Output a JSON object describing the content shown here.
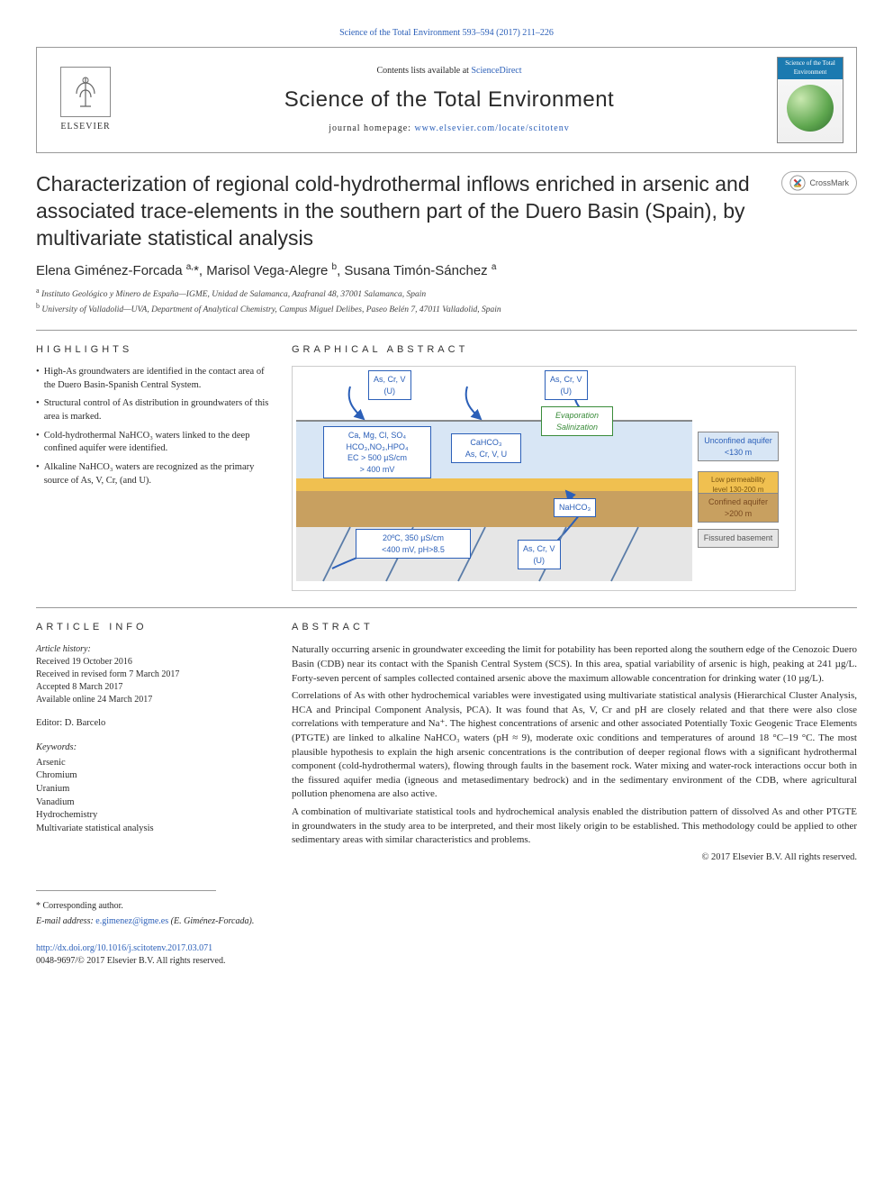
{
  "top_citation": "Science of the Total Environment 593–594 (2017) 211–226",
  "header": {
    "contents_prefix": "Contents lists available at ",
    "contents_link": "ScienceDirect",
    "journal_name": "Science of the Total Environment",
    "homepage_prefix": "journal homepage: ",
    "homepage_link": "www.elsevier.com/locate/scitotenv",
    "publisher_name": "ELSEVIER",
    "cover_label": "Science of the Total Environment"
  },
  "article": {
    "title": "Characterization of regional cold-hydrothermal inflows enriched in arsenic and associated trace-elements in the southern part of the Duero Basin (Spain), by multivariate statistical analysis",
    "crossmark_label": "CrossMark",
    "authors_html": "Elena Giménez-Forcada <sup>a,</sup>*, Marisol Vega-Alegre <sup>b</sup>, Susana Timón-Sánchez <sup>a</sup>",
    "affiliations": [
      "a Instituto Geológico y Minero de España—IGME, Unidad de Salamanca, Azafranal 48, 37001 Salamanca, Spain",
      "b University of Valladolid—UVA, Department of Analytical Chemistry, Campus Miguel Delibes, Paseo Belén 7, 47011 Valladolid, Spain"
    ]
  },
  "highlights": {
    "heading": "HIGHLIGHTS",
    "items": [
      "High-As groundwaters are identified in the contact area of the Duero Basin-Spanish Central System.",
      "Structural control of As distribution in groundwaters of this area is marked.",
      "Cold-hydrothermal NaHCO₃ waters linked to the deep confined aquifer were identified.",
      "Alkaline NaHCO₃ waters are recognized as the primary source of As, V, Cr, (and U)."
    ]
  },
  "graphical_abstract": {
    "heading": "GRAPHICAL ABSTRACT",
    "colors": {
      "blue_box_border": "#2b5fb8",
      "green_box_border": "#3a8c3a",
      "aquifer_top": "#d8e6f5",
      "aquifer_bottom": "#b8d0ea",
      "low_perm": "#f0c050",
      "confined": "#c8a060",
      "basement": "#d9d9d9",
      "evap_text": "#3a8c3a"
    },
    "boxes": {
      "top_left": "As, Cr, V\n(U)",
      "top_right": "As, Cr, V\n(U)",
      "left_main": "Ca, Mg, Cl, SO₄\nHCO₃,NO₃,HPO₄\nEC > 500 µS/cm\n> 400 mV",
      "center_small": "CaHCO₃\nAs, Cr, V, U",
      "evap_box": "Evaporation\nSalinization",
      "right_u1": "Unconfined aquifer\n<130 m",
      "right_u2": "Low permeability level 130-200 m",
      "right_u3": "Confined aquifer\n>200 m",
      "right_u4": "Fissured basement",
      "deep_arrow": "20ºC, 350 µS/cm\n<400 mV, pH>8.5",
      "nahco3": "NaHCO₃",
      "deep_as": "As, Cr, V\n(U)"
    }
  },
  "article_info": {
    "heading": "ARTICLE INFO",
    "history_label": "Article history:",
    "history": [
      "Received 19 October 2016",
      "Received in revised form 7 March 2017",
      "Accepted 8 March 2017",
      "Available online 24 March 2017"
    ],
    "editor_label": "Editor: ",
    "editor_name": "D. Barcelo",
    "keywords_label": "Keywords:",
    "keywords": [
      "Arsenic",
      "Chromium",
      "Uranium",
      "Vanadium",
      "Hydrochemistry",
      "Multivariate statistical analysis"
    ]
  },
  "abstract": {
    "heading": "ABSTRACT",
    "paragraphs": [
      "Naturally occurring arsenic in groundwater exceeding the limit for potability has been reported along the southern edge of the Cenozoic Duero Basin (CDB) near its contact with the Spanish Central System (SCS). In this area, spatial variability of arsenic is high, peaking at 241 µg/L. Forty-seven percent of samples collected contained arsenic above the maximum allowable concentration for drinking water (10 µg/L).",
      "Correlations of As with other hydrochemical variables were investigated using multivariate statistical analysis (Hierarchical Cluster Analysis, HCA and Principal Component Analysis, PCA). It was found that As, V, Cr and pH are closely related and that there were also close correlations with temperature and Na⁺. The highest concentrations of arsenic and other associated Potentially Toxic Geogenic Trace Elements (PTGTE) are linked to alkaline NaHCO₃ waters (pH ≈ 9), moderate oxic conditions and temperatures of around 18 °C–19 °C. The most plausible hypothesis to explain the high arsenic concentrations is the contribution of deeper regional flows with a significant hydrothermal component (cold-hydrothermal waters), flowing through faults in the basement rock. Water mixing and water-rock interactions occur both in the fissured aquifer media (igneous and metasedimentary bedrock) and in the sedimentary environment of the CDB, where agricultural pollution phenomena are also active.",
      "A combination of multivariate statistical tools and hydrochemical analysis enabled the distribution pattern of dissolved As and other PTGTE in groundwaters in the study area to be interpreted, and their most likely origin to be established. This methodology could be applied to other sedimentary areas with similar characteristics and problems."
    ],
    "copyright": "© 2017 Elsevier B.V. All rights reserved."
  },
  "footer": {
    "corresponding_label": "* Corresponding author.",
    "email_label": "E-mail address: ",
    "email": "e.gimenez@igme.es",
    "email_attr": " (E. Giménez-Forcada).",
    "doi_link": "http://dx.doi.org/10.1016/j.scitotenv.2017.03.071",
    "issn_line": "0048-9697/© 2017 Elsevier B.V. All rights reserved."
  }
}
